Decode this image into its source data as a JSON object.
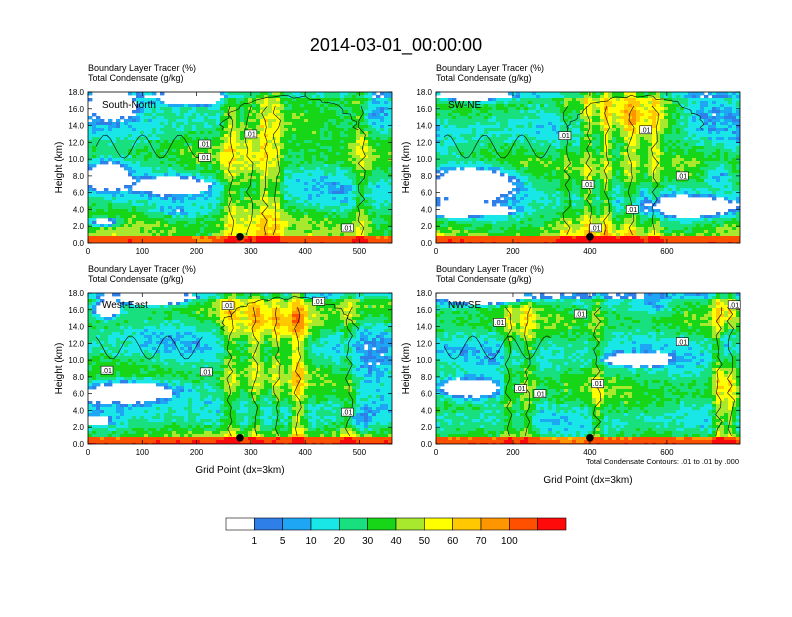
{
  "title": "2014-03-01_00:00:00",
  "colors": {
    "bins": [
      "#ffffff",
      "#2f7fe8",
      "#1ea6f5",
      "#19e6e6",
      "#18e07e",
      "#17d617",
      "#a8e82d",
      "#ffff00",
      "#ffc800",
      "#ff9600",
      "#ff5000",
      "#ff0a0a"
    ],
    "contour": "#000000",
    "marker": "#000000"
  },
  "legend": {
    "labels": [
      "1",
      "5",
      "10",
      "20",
      "30",
      "40",
      "50",
      "60",
      "70",
      "100"
    ]
  },
  "contour_note": "Total Condensate Contours: .01 to .01 by .000",
  "chart_data": [
    {
      "type": "heatmap",
      "title": "South-North",
      "subtitle_line1": "Boundary Layer Tracer    (%)",
      "subtitle_line2": "Total Condensate    (g/kg)",
      "ylabel": "Height (km)",
      "xlabel": "",
      "xlim": [
        0,
        560
      ],
      "ylim": [
        0,
        18
      ],
      "xticks": [
        "0",
        "100",
        "200",
        "300",
        "400",
        "500"
      ],
      "xtick_values": [
        0,
        100,
        200,
        300,
        400,
        500
      ],
      "yticks": [
        "0.0",
        "2.0",
        "4.0",
        "6.0",
        "8.0",
        "10.0",
        "12.0",
        "14.0",
        "16.0",
        "18.0"
      ],
      "ytick_values": [
        0,
        2,
        4,
        6,
        8,
        10,
        12,
        14,
        16,
        18
      ],
      "contour_labels": [
        {
          "x": 215,
          "y": 11.8,
          "text": ".01"
        },
        {
          "x": 215,
          "y": 10.2,
          "text": ".01"
        },
        {
          "x": 300,
          "y": 13.0,
          "text": ".01"
        },
        {
          "x": 478,
          "y": 1.8,
          "text": ".01"
        }
      ],
      "marker": {
        "x": 280,
        "y": 0.5
      }
    },
    {
      "type": "heatmap",
      "title": "SW-NE",
      "subtitle_line1": "Boundary Layer Tracer    (%)",
      "subtitle_line2": "Total Condensate    (g/kg)",
      "ylabel": "Height (km)",
      "xlabel": "",
      "xlim": [
        0,
        790
      ],
      "ylim": [
        0,
        18
      ],
      "xticks": [
        "0",
        "200",
        "400",
        "600"
      ],
      "xtick_values": [
        0,
        200,
        400,
        600
      ],
      "yticks": [
        "0.0",
        "2.0",
        "4.0",
        "6.0",
        "8.0",
        "10.0",
        "12.0",
        "14.0",
        "16.0",
        "18.0"
      ],
      "ytick_values": [
        0,
        2,
        4,
        6,
        8,
        10,
        12,
        14,
        16,
        18
      ],
      "contour_labels": [
        {
          "x": 335,
          "y": 12.8,
          "text": ".01"
        },
        {
          "x": 395,
          "y": 7.0,
          "text": ".01"
        },
        {
          "x": 415,
          "y": 1.8,
          "text": ".01"
        },
        {
          "x": 510,
          "y": 4.0,
          "text": ".01"
        },
        {
          "x": 545,
          "y": 13.5,
          "text": ".01"
        },
        {
          "x": 640,
          "y": 8.0,
          "text": ".01"
        }
      ],
      "marker": {
        "x": 400,
        "y": 0.5
      }
    },
    {
      "type": "heatmap",
      "title": "West-East",
      "subtitle_line1": "Boundary Layer Tracer    (%)",
      "subtitle_line2": "Total Condensate    (g/kg)",
      "ylabel": "Height (km)",
      "xlabel": "Grid Point (dx=3km)",
      "xlim": [
        0,
        560
      ],
      "ylim": [
        0,
        18
      ],
      "xticks": [
        "0",
        "100",
        "200",
        "300",
        "400",
        "500"
      ],
      "xtick_values": [
        0,
        100,
        200,
        300,
        400,
        500
      ],
      "yticks": [
        "0.0",
        "2.0",
        "4.0",
        "6.0",
        "8.0",
        "10.0",
        "12.0",
        "14.0",
        "16.0",
        "18.0"
      ],
      "ytick_values": [
        0,
        2,
        4,
        6,
        8,
        10,
        12,
        14,
        16,
        18
      ],
      "contour_labels": [
        {
          "x": 35,
          "y": 8.8,
          "text": ".01"
        },
        {
          "x": 218,
          "y": 8.6,
          "text": ".01"
        },
        {
          "x": 258,
          "y": 16.5,
          "text": ".01"
        },
        {
          "x": 425,
          "y": 17.0,
          "text": ".01"
        },
        {
          "x": 478,
          "y": 3.8,
          "text": ".01"
        }
      ],
      "marker": {
        "x": 280,
        "y": 0.5
      }
    },
    {
      "type": "heatmap",
      "title": "NW-SE",
      "subtitle_line1": "Boundary Layer Tracer    (%)",
      "subtitle_line2": "Total Condensate    (g/kg)",
      "ylabel": "Height (km)",
      "xlabel": "Grid Point (dx=3km)",
      "xlim": [
        0,
        790
      ],
      "ylim": [
        0,
        18
      ],
      "xticks": [
        "0",
        "200",
        "400",
        "600"
      ],
      "xtick_values": [
        0,
        200,
        400,
        600
      ],
      "yticks": [
        "0.0",
        "2.0",
        "4.0",
        "6.0",
        "8.0",
        "10.0",
        "12.0",
        "14.0",
        "16.0",
        "18.0"
      ],
      "ytick_values": [
        0,
        2,
        4,
        6,
        8,
        10,
        12,
        14,
        16,
        18
      ],
      "contour_labels": [
        {
          "x": 165,
          "y": 14.5,
          "text": ".01"
        },
        {
          "x": 220,
          "y": 6.6,
          "text": ".01"
        },
        {
          "x": 270,
          "y": 6.0,
          "text": ".01"
        },
        {
          "x": 375,
          "y": 15.5,
          "text": ".01"
        },
        {
          "x": 420,
          "y": 7.2,
          "text": ".01"
        },
        {
          "x": 640,
          "y": 12.2,
          "text": ".01"
        },
        {
          "x": 775,
          "y": 16.6,
          "text": ".01"
        }
      ],
      "marker": {
        "x": 400,
        "y": 0.5
      }
    }
  ]
}
